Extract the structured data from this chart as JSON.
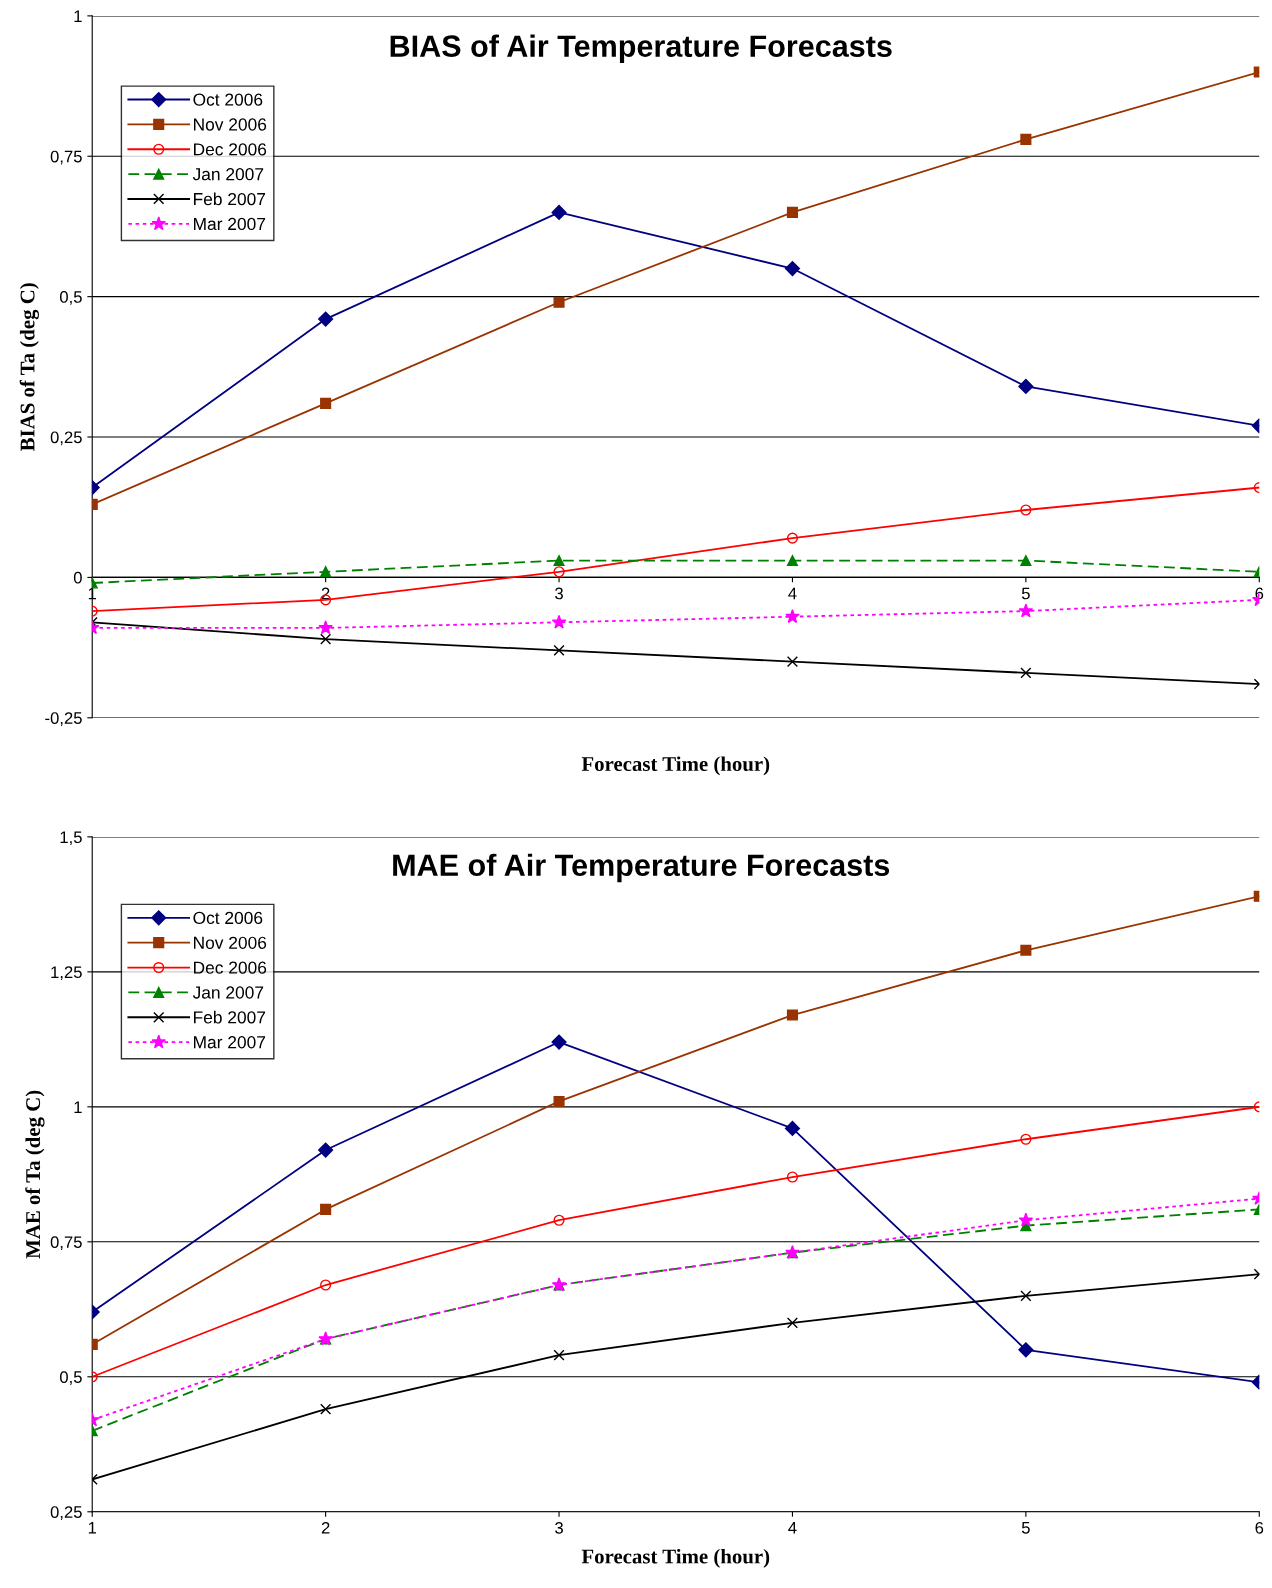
{
  "chart_data": [
    {
      "type": "line",
      "title": "BIAS of Air Temperature Forecasts",
      "xlabel": "Forecast Time (hour)",
      "ylabel": "BIAS of Ta (deg C)",
      "x": [
        1,
        2,
        3,
        4,
        5,
        6
      ],
      "xlim": [
        1,
        6
      ],
      "xticks": [
        1,
        2,
        3,
        4,
        5,
        6
      ],
      "ylim": [
        -0.25,
        1
      ],
      "yticks": [
        {
          "value": -0.25,
          "label": "-0,25"
        },
        0,
        {
          "value": 0.25,
          "label": "0,25"
        },
        {
          "value": 0.5,
          "label": "0,5"
        },
        {
          "value": 0.75,
          "label": "0,75"
        },
        1
      ],
      "grid": "y",
      "legend": "top left",
      "series": [
        {
          "name": "Oct 2006",
          "color": "#000080",
          "marker": "diamond",
          "line_style": "solid",
          "values": [
            0.16,
            0.46,
            0.65,
            0.55,
            0.34,
            0.27
          ]
        },
        {
          "name": "Nov 2006",
          "color": "#993300",
          "marker": "square",
          "line_style": "solid",
          "values": [
            0.13,
            0.31,
            0.49,
            0.65,
            0.78,
            0.9
          ]
        },
        {
          "name": "Dec 2006",
          "color": "#ff0000",
          "marker": "circle",
          "line_style": "solid",
          "values": [
            -0.06,
            -0.04,
            0.01,
            0.07,
            0.12,
            0.16
          ]
        },
        {
          "name": "Jan 2007",
          "color": "#008000",
          "marker": "triangle",
          "line_style": "dashed",
          "values": [
            -0.01,
            0.01,
            0.03,
            0.03,
            0.03,
            0.01
          ]
        },
        {
          "name": "Feb 2007",
          "color": "#000000",
          "marker": "cross",
          "line_style": "solid",
          "values": [
            -0.08,
            -0.11,
            -0.13,
            -0.15,
            -0.17,
            -0.19
          ]
        },
        {
          "name": "Mar 2007",
          "color": "#ff00ff",
          "marker": "star",
          "line_style": "dotted",
          "values": [
            -0.09,
            -0.09,
            -0.08,
            -0.07,
            -0.06,
            -0.04
          ]
        }
      ]
    },
    {
      "type": "line",
      "title": "MAE of Air Temperature Forecasts",
      "xlabel": "Forecast Time (hour)",
      "ylabel": "MAE of Ta (deg C)",
      "x": [
        1,
        2,
        3,
        4,
        5,
        6
      ],
      "xlim": [
        1,
        6
      ],
      "xticks": [
        1,
        2,
        3,
        4,
        5,
        6
      ],
      "ylim": [
        0.25,
        1.5
      ],
      "yticks": [
        {
          "value": 0.25,
          "label": "0,25"
        },
        {
          "value": 0.5,
          "label": "0,5"
        },
        {
          "value": 0.75,
          "label": "0,75"
        },
        1,
        {
          "value": 1.25,
          "label": "1,25"
        },
        {
          "value": 1.5,
          "label": "1,5"
        }
      ],
      "grid": "y",
      "legend": "top left",
      "series": [
        {
          "name": "Oct 2006",
          "color": "#000080",
          "marker": "diamond",
          "line_style": "solid",
          "values": [
            0.62,
            0.92,
            1.12,
            0.96,
            0.55,
            0.49
          ]
        },
        {
          "name": "Nov 2006",
          "color": "#993300",
          "marker": "square",
          "line_style": "solid",
          "values": [
            0.56,
            0.81,
            1.01,
            1.17,
            1.29,
            1.39
          ]
        },
        {
          "name": "Dec 2006",
          "color": "#ff0000",
          "marker": "circle",
          "line_style": "solid",
          "values": [
            0.5,
            0.67,
            0.79,
            0.87,
            0.94,
            1.0
          ]
        },
        {
          "name": "Jan 2007",
          "color": "#008000",
          "marker": "triangle",
          "line_style": "dashed",
          "values": [
            0.4,
            0.57,
            0.67,
            0.73,
            0.78,
            0.81
          ]
        },
        {
          "name": "Feb 2007",
          "color": "#000000",
          "marker": "cross",
          "line_style": "solid",
          "values": [
            0.31,
            0.44,
            0.54,
            0.6,
            0.65,
            0.69
          ]
        },
        {
          "name": "Mar 2007",
          "color": "#ff00ff",
          "marker": "star",
          "line_style": "dotted",
          "values": [
            0.42,
            0.57,
            0.67,
            0.73,
            0.79,
            0.83
          ]
        }
      ]
    }
  ]
}
